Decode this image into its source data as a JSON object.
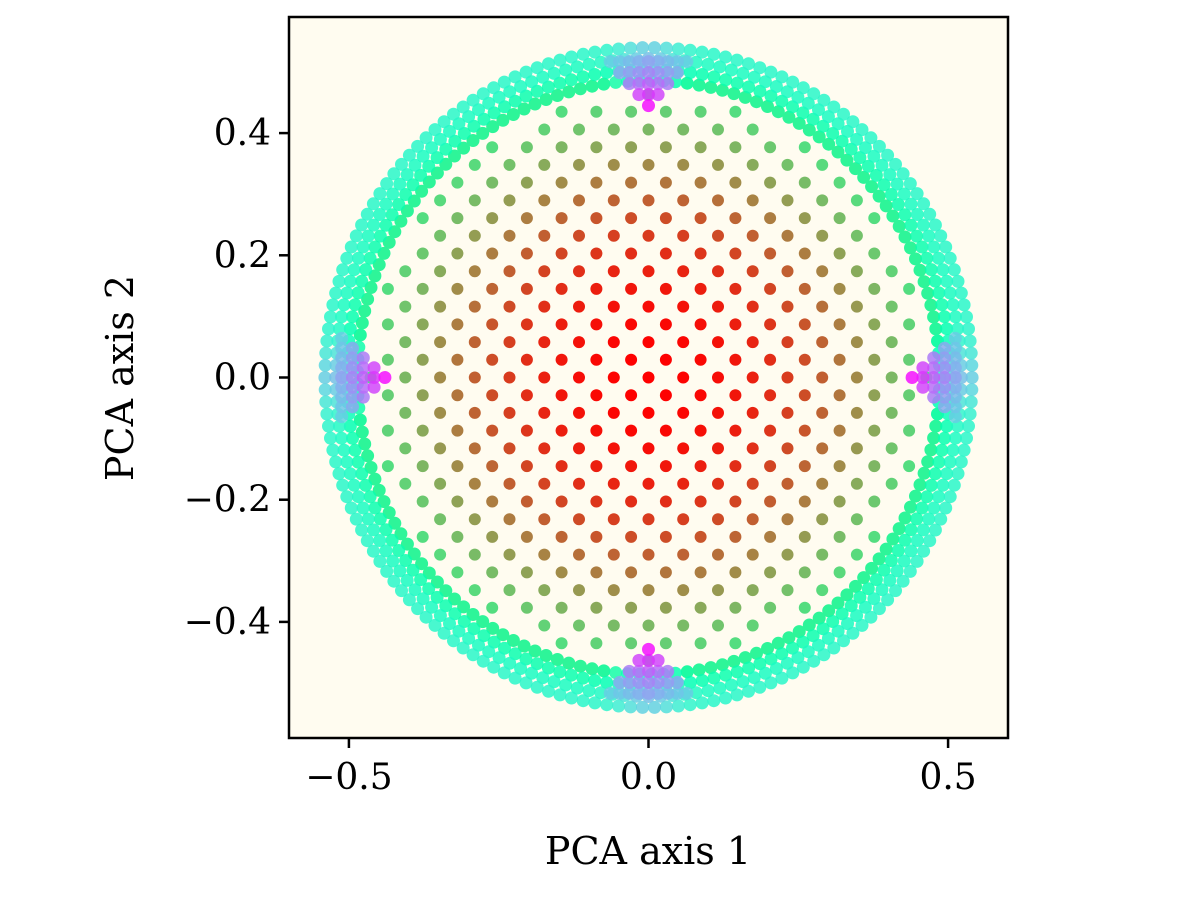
{
  "chart_data": {
    "type": "scatter",
    "title": "",
    "xlabel": "PCA axis 1",
    "ylabel": "PCA axis 2",
    "xlim": [
      -0.6,
      0.6
    ],
    "ylim": [
      -0.59,
      0.59
    ],
    "background": "#fffcf0",
    "x_ticks": [
      {
        "value": -0.5,
        "label": "−0.5"
      },
      {
        "value": 0.0,
        "label": "0.0"
      },
      {
        "value": 0.5,
        "label": "0.5"
      }
    ],
    "y_ticks": [
      {
        "value": 0.4,
        "label": "0.4"
      },
      {
        "value": 0.2,
        "label": "0.2"
      },
      {
        "value": 0.0,
        "label": "0.0"
      },
      {
        "value": -0.2,
        "label": "−0.2"
      },
      {
        "value": -0.4,
        "label": "−0.4"
      }
    ],
    "colormap": "rainbow",
    "grid": false,
    "point_cloud": {
      "description": "Dense disk of points on a slightly rotated square lattice; colour depends on distance from the centre (red centre, orange/yellow middle, cyan/blue rim) with violet cusps at the four cardinal points on the rim.",
      "outer_radius": 0.54,
      "lattice_spacing": 0.041,
      "lattice_rotation_deg": 45,
      "cusp_points": [
        [
          0.0,
          0.445
        ],
        [
          0.0,
          -0.445
        ],
        [
          0.44,
          0.0
        ],
        [
          -0.44,
          0.0
        ]
      ]
    }
  }
}
